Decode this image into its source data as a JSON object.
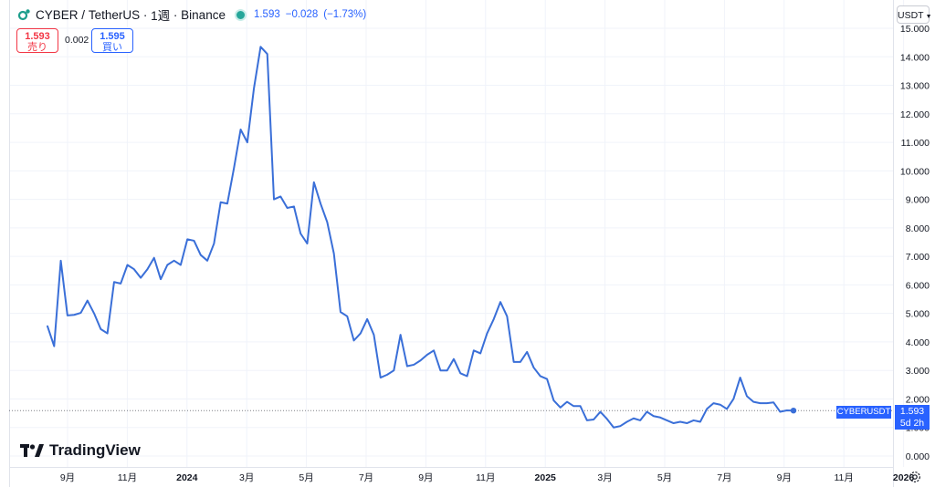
{
  "header": {
    "symbol": "CYBER",
    "separator": "/",
    "quote": "TetherUS",
    "interval": "1週",
    "exchange": "Binance",
    "dot1": "·",
    "dot2": "·",
    "last": "1.593",
    "change": "−0.028",
    "change_pct": "(−1.73%)",
    "status_color": "#26a69a"
  },
  "trade": {
    "sell_price": "1.593",
    "sell_label": "売り",
    "spread": "0.002",
    "buy_price": "1.595",
    "buy_label": "買い"
  },
  "currency_select": "USDT",
  "brand": "TradingView",
  "price_tag": {
    "symbol": "CYBERUSDT",
    "price": "1.593",
    "countdown": "5d 2h"
  },
  "colors": {
    "line": "#3a6fd8",
    "accent": "#2962ff",
    "sell": "#f23645"
  },
  "chart_data": {
    "type": "line",
    "title": "",
    "xlabel": "",
    "ylabel": "",
    "ylim": [
      0,
      15
    ],
    "grid": true,
    "y_ticks": [
      "0.000",
      "1.000",
      "2.000",
      "3.000",
      "4.000",
      "5.000",
      "6.000",
      "7.000",
      "8.000",
      "9.000",
      "10.000",
      "11.000",
      "12.000",
      "13.000",
      "14.000",
      "15.000"
    ],
    "x_ticks": [
      {
        "label": "9月",
        "pos": 2.0
      },
      {
        "label": "11月",
        "pos": 4.0
      },
      {
        "label": "2024",
        "pos": 6.0,
        "bold": true
      },
      {
        "label": "3月",
        "pos": 8.0
      },
      {
        "label": "5月",
        "pos": 10.0
      },
      {
        "label": "7月",
        "pos": 12.0
      },
      {
        "label": "9月",
        "pos": 14.0
      },
      {
        "label": "11月",
        "pos": 16.0
      },
      {
        "label": "2025",
        "pos": 18.0,
        "bold": true
      },
      {
        "label": "3月",
        "pos": 20.0
      },
      {
        "label": "5月",
        "pos": 22.0
      },
      {
        "label": "7月",
        "pos": 24.0
      },
      {
        "label": "9月",
        "pos": 26.0
      },
      {
        "label": "11月",
        "pos": 28.0
      },
      {
        "label": "2026",
        "pos": 30.0,
        "bold": true
      }
    ],
    "x_range": [
      0.75,
      30.75
    ],
    "series": [
      {
        "values": [
          4.55,
          3.85,
          6.85,
          4.93,
          4.95,
          5.02,
          5.45,
          5.0,
          4.45,
          4.3,
          6.1,
          6.05,
          6.7,
          6.55,
          6.25,
          6.55,
          6.95,
          6.2,
          6.7,
          6.85,
          6.7,
          7.6,
          7.55,
          7.05,
          6.85,
          7.45,
          8.9,
          8.85,
          10.1,
          11.45,
          11.0,
          12.9,
          14.35,
          14.1,
          9.0,
          9.1,
          8.7,
          8.75,
          7.8,
          7.45,
          9.6,
          8.85,
          8.2,
          7.1,
          5.05,
          4.9,
          4.05,
          4.3,
          4.8,
          4.25,
          2.75,
          2.85,
          3.0,
          4.25,
          3.15,
          3.2,
          3.35,
          3.55,
          3.7,
          3.0,
          3.0,
          3.4,
          2.9,
          2.8,
          3.7,
          3.6,
          4.3,
          4.8,
          5.4,
          4.9,
          3.3,
          3.3,
          3.65,
          3.1,
          2.8,
          2.7,
          1.95,
          1.7,
          1.9,
          1.75,
          1.75,
          1.25,
          1.28,
          1.55,
          1.3,
          1.0,
          1.05,
          1.2,
          1.32,
          1.25,
          1.55,
          1.4,
          1.35,
          1.25,
          1.15,
          1.2,
          1.15,
          1.25,
          1.2,
          1.65,
          1.85,
          1.8,
          1.65,
          2.0,
          2.75,
          2.1,
          1.9,
          1.85,
          1.85,
          1.88,
          1.55,
          1.6,
          1.593
        ]
      }
    ]
  }
}
